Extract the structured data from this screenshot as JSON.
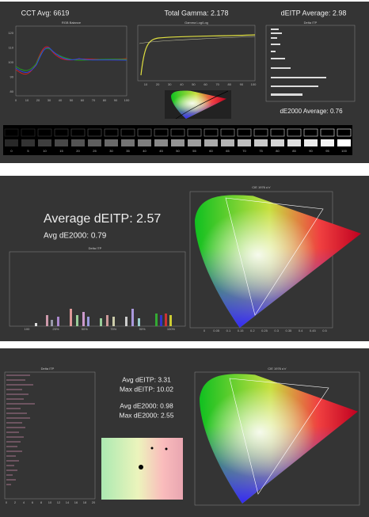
{
  "panel1": {
    "cct": "CCT Avg: 6619",
    "gamma": "Total Gamma: 2.178",
    "deitp": "dEITP Average: 2.98",
    "de2000": "dE2000 Average: 0.76",
    "rgb_title": "RGB Balance",
    "gamma_title": "Gamma Log/Log",
    "deitp_title": "Delta ITP",
    "rgb_yticks": [
      "120",
      "110",
      "100",
      "90",
      "80"
    ],
    "rgb_xticks": [
      "0",
      "10",
      "20",
      "30",
      "40",
      "50",
      "60",
      "70",
      "80",
      "90",
      "100"
    ],
    "gamma_xticks": [
      "10",
      "20",
      "30",
      "40",
      "50",
      "60",
      "70",
      "80",
      "90",
      "100"
    ],
    "gray_labels": [
      "0",
      "5",
      "10",
      "15",
      "20",
      "25",
      "30",
      "35",
      "40",
      "45",
      "50",
      "55",
      "60",
      "65",
      "70",
      "75",
      "80",
      "85",
      "90",
      "95",
      "100"
    ]
  },
  "panel2": {
    "avg_deitp": "Average dEITP: 2.57",
    "avg_de2000": "Avg dE2000: 0.79",
    "bar_title": "Delta ITP",
    "cie_title": "CIE 1976 u'v'",
    "bar_xticks": [
      "100",
      "25%",
      "50%",
      "75%",
      "90%",
      "100%"
    ],
    "cie_xticks": [
      "0",
      "0.05",
      "0.1",
      "0.15",
      "0.2",
      "0.25",
      "0.3",
      "0.35",
      "0.4",
      "0.45",
      "0.5"
    ]
  },
  "panel3": {
    "avg_deitp": "Avg dEITP: 3.31",
    "max_deitp": "Max dEITP: 10.02",
    "avg_de2000": "Avg dE2000: 0.98",
    "max_de2000": "Max dE2000: 2.55",
    "bar_title": "Delta ITP",
    "cie_title": "CIE 1976 u'v'",
    "bar_xticks": [
      "0",
      "2",
      "4",
      "6",
      "8",
      "10",
      "12",
      "14",
      "16",
      "18",
      "20"
    ]
  }
}
